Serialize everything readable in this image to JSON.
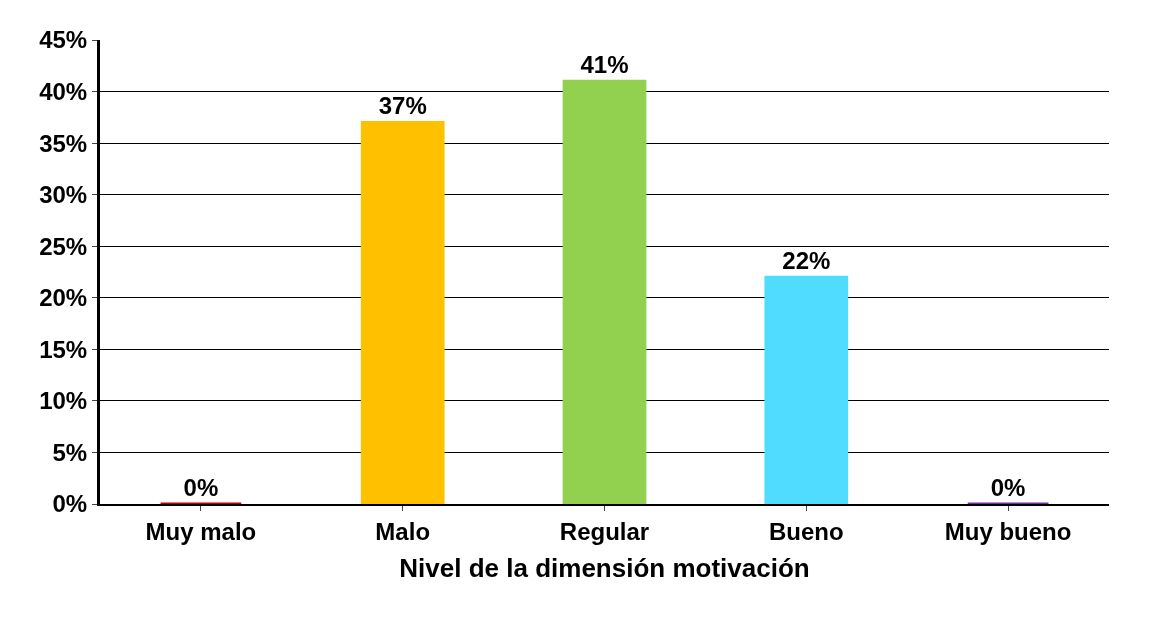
{
  "chart_data": {
    "type": "bar",
    "xlabel": "Nivel de la dimensión motivación",
    "categories": [
      "Muy malo",
      "Malo",
      "Regular",
      "Bueno",
      "Muy bueno"
    ],
    "values": [
      0,
      37,
      41,
      22,
      0
    ],
    "colors": [
      "#c00000",
      "#ffc000",
      "#92d050",
      "#4fdcff",
      "#7030a0"
    ],
    "value_labels": [
      "0%",
      "37%",
      "41%",
      "22%",
      "0%"
    ],
    "ylim": [
      0,
      45
    ],
    "yticks": [
      {
        "value": 0,
        "label": "0%"
      },
      {
        "value": 5,
        "label": "5%"
      },
      {
        "value": 10,
        "label": "10%"
      },
      {
        "value": 15,
        "label": "15%"
      },
      {
        "value": 20,
        "label": "20%"
      },
      {
        "value": 25,
        "label": "25%"
      },
      {
        "value": 30,
        "label": "30%"
      },
      {
        "value": 35,
        "label": "35%"
      },
      {
        "value": 40,
        "label": "40%"
      },
      {
        "value": 45,
        "label": "45%"
      }
    ],
    "grid": "y"
  }
}
